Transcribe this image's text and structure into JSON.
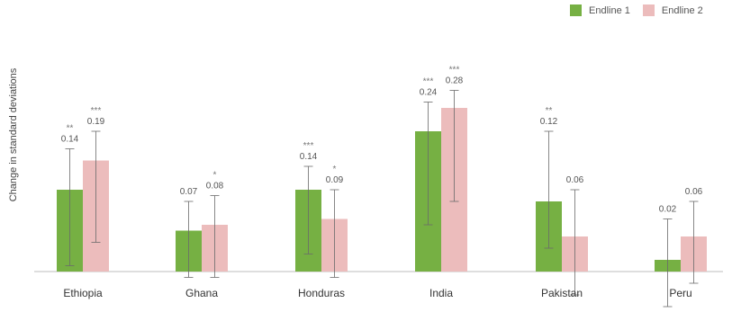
{
  "chart_data": {
    "type": "bar",
    "title": "",
    "xlabel": "",
    "ylabel": "Change in standard deviations",
    "categories": [
      "Ethiopia",
      "Ghana",
      "Honduras",
      "India",
      "Pakistan",
      "Peru"
    ],
    "series": [
      {
        "name": "Endline 1",
        "color": "#76b043",
        "values": [
          0.14,
          0.07,
          0.14,
          0.24,
          0.12,
          0.02
        ],
        "labels": [
          "0.14",
          "0.07",
          "0.14",
          "0.24",
          "0.12",
          "0.02"
        ],
        "stars": [
          "**",
          "",
          "***",
          "***",
          "**",
          ""
        ],
        "ci_low": [
          0.01,
          -0.01,
          0.03,
          0.08,
          0.04,
          -0.06
        ],
        "ci_high": [
          0.21,
          0.12,
          0.18,
          0.29,
          0.24,
          0.09
        ]
      },
      {
        "name": "Endline 2",
        "color": "#ecbcbc",
        "values": [
          0.19,
          0.08,
          0.09,
          0.28,
          0.06,
          0.06
        ],
        "labels": [
          "0.19",
          "0.08",
          "0.09",
          "0.28",
          "0.06",
          "0.06"
        ],
        "stars": [
          "***",
          "*",
          "*",
          "***",
          "",
          ""
        ],
        "ci_low": [
          0.05,
          -0.01,
          -0.01,
          0.12,
          -0.04,
          -0.02
        ],
        "ci_high": [
          0.24,
          0.13,
          0.14,
          0.31,
          0.14,
          0.12
        ]
      }
    ],
    "ylim": [
      -0.06,
      0.33
    ],
    "grid": false,
    "legend_position": "top-right"
  }
}
